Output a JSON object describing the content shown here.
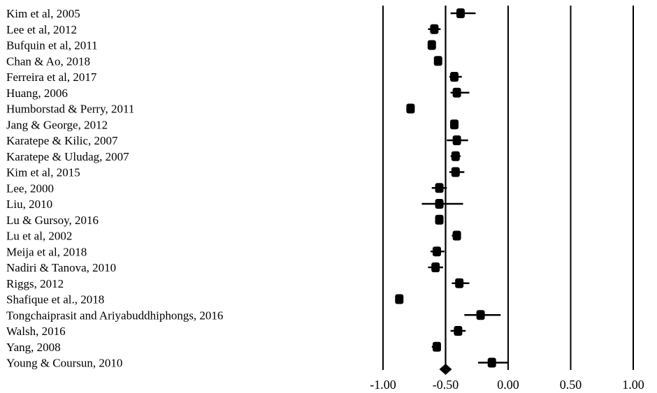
{
  "chart_data": {
    "type": "scatter",
    "subtype": "forest-plot",
    "title": "",
    "xlabel": "",
    "ylabel": "",
    "xlim": [
      -1.0,
      1.0
    ],
    "xticks": [
      -1.0,
      -0.5,
      0.0,
      0.5,
      1.0
    ],
    "xtick_labels": [
      "-1.00",
      "-0.50",
      "0.00",
      "0.50",
      "1.00"
    ],
    "reference_lines": [
      -1.0,
      -0.5,
      0.0,
      0.5,
      1.0
    ],
    "studies": [
      {
        "name": "Kim et al, 2005",
        "estimate": -0.38,
        "lower": -0.46,
        "upper": -0.26
      },
      {
        "name": "Lee et al, 2012",
        "estimate": -0.59,
        "lower": -0.64,
        "upper": -0.54
      },
      {
        "name": "Bufquin et al, 2011",
        "estimate": -0.61,
        "lower": -0.63,
        "upper": -0.59
      },
      {
        "name": "Chan & Ao, 2018",
        "estimate": -0.56,
        "lower": -0.58,
        "upper": -0.53
      },
      {
        "name": "Ferreira et al, 2017",
        "estimate": -0.43,
        "lower": -0.47,
        "upper": -0.37
      },
      {
        "name": "Huang, 2006",
        "estimate": -0.41,
        "lower": -0.46,
        "upper": -0.31
      },
      {
        "name": "Humborstad & Perry, 2011",
        "estimate": -0.78,
        "lower": -0.8,
        "upper": -0.76
      },
      {
        "name": "Jang & George, 2012",
        "estimate": -0.43,
        "lower": -0.46,
        "upper": -0.4
      },
      {
        "name": "Karatepe & Kilic, 2007",
        "estimate": -0.41,
        "lower": -0.49,
        "upper": -0.32
      },
      {
        "name": "Karatepe & Uludag, 2007",
        "estimate": -0.42,
        "lower": -0.46,
        "upper": -0.38
      },
      {
        "name": "Kim et al, 2015",
        "estimate": -0.42,
        "lower": -0.47,
        "upper": -0.35
      },
      {
        "name": "Lee, 2000",
        "estimate": -0.55,
        "lower": -0.61,
        "upper": -0.49
      },
      {
        "name": "Liu, 2010",
        "estimate": -0.55,
        "lower": -0.69,
        "upper": -0.36
      },
      {
        "name": "Lu & Gursoy, 2016",
        "estimate": -0.55,
        "lower": -0.58,
        "upper": -0.52
      },
      {
        "name": "Lu et al, 2002",
        "estimate": -0.41,
        "lower": -0.45,
        "upper": -0.38
      },
      {
        "name": "Meija et al, 2018",
        "estimate": -0.57,
        "lower": -0.62,
        "upper": -0.51
      },
      {
        "name": "Nadiri & Tanova, 2010",
        "estimate": -0.58,
        "lower": -0.64,
        "upper": -0.52
      },
      {
        "name": "Riggs, 2012",
        "estimate": -0.39,
        "lower": -0.45,
        "upper": -0.31
      },
      {
        "name": "Shafique et al., 2018",
        "estimate": -0.87,
        "lower": -0.89,
        "upper": -0.86
      },
      {
        "name": "Tongchaiprasit and Ariyabuddhiphongs, 2016",
        "estimate": -0.22,
        "lower": -0.35,
        "upper": -0.06
      },
      {
        "name": "Walsh, 2016",
        "estimate": -0.4,
        "lower": -0.46,
        "upper": -0.34
      },
      {
        "name": "Yang, 2008",
        "estimate": -0.57,
        "lower": -0.61,
        "upper": -0.54
      },
      {
        "name": "Young & Coursun, 2010",
        "estimate": -0.13,
        "lower": -0.24,
        "upper": 0.0
      }
    ],
    "summary": {
      "estimate": -0.5,
      "lower": -0.55,
      "upper": -0.45
    },
    "colors": {
      "marker": "#000000",
      "line": "#000000",
      "background": "#ffffff"
    }
  }
}
